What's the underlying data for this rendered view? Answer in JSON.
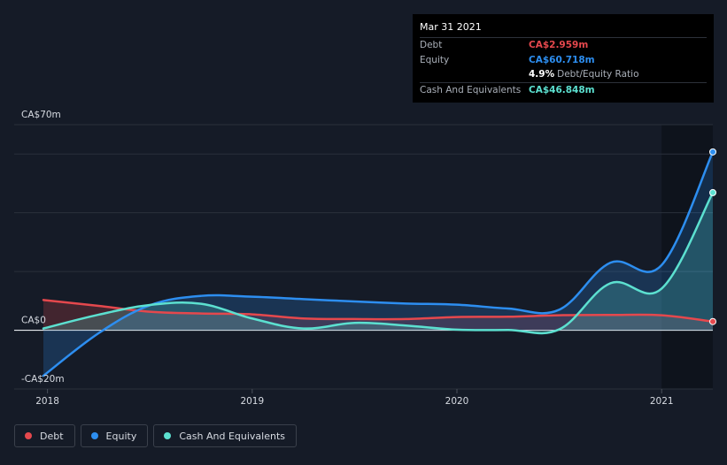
{
  "tooltip": {
    "date": "Mar 31 2021",
    "debt_label": "Debt",
    "debt_value": "CA$2.959m",
    "equity_label": "Equity",
    "equity_value": "CA$60.718m",
    "ratio_value": "4.9%",
    "ratio_label": "Debt/Equity Ratio",
    "cash_label": "Cash And Equivalents",
    "cash_value": "CA$46.848m"
  },
  "legend": [
    {
      "label": "Debt",
      "color": "#e5484d"
    },
    {
      "label": "Equity",
      "color": "#2d8ef0"
    },
    {
      "label": "Cash And Equivalents",
      "color": "#5ce0d0"
    }
  ],
  "chart_data": {
    "type": "line",
    "currency": "CA$",
    "unit": "millions",
    "ylim": [
      -20,
      70
    ],
    "y_ticks": [
      {
        "value": 70,
        "label": "CA$70m"
      },
      {
        "value": 0,
        "label": "CA$0"
      },
      {
        "value": -20,
        "label": "-CA$20m"
      }
    ],
    "x_ticks": [
      {
        "value": 2018.0,
        "label": "2018"
      },
      {
        "value": 2019.0,
        "label": "2019"
      },
      {
        "value": 2020.0,
        "label": "2020"
      },
      {
        "value": 2021.0,
        "label": "2021"
      }
    ],
    "xlim": [
      2017.98,
      2021.25
    ],
    "gridlines": [
      60,
      40,
      20
    ],
    "series": [
      {
        "name": "Debt",
        "color": "#e5484d",
        "x": [
          2017.98,
          2018.25,
          2018.5,
          2018.75,
          2019.0,
          2019.25,
          2019.5,
          2019.75,
          2020.0,
          2020.25,
          2020.5,
          2020.75,
          2021.0,
          2021.25
        ],
        "y": [
          10.3,
          8.3,
          6.3,
          5.7,
          5.4,
          4.0,
          3.8,
          3.8,
          4.5,
          4.6,
          5.1,
          5.2,
          5.1,
          2.959
        ]
      },
      {
        "name": "Equity",
        "color": "#2d8ef0",
        "x": [
          2017.98,
          2018.25,
          2018.5,
          2018.75,
          2019.0,
          2019.25,
          2019.5,
          2019.75,
          2020.0,
          2020.25,
          2020.5,
          2020.75,
          2021.0,
          2021.25
        ],
        "y": [
          -15.5,
          -1.0,
          8.5,
          11.7,
          11.4,
          10.6,
          9.8,
          9.1,
          8.7,
          7.4,
          7.0,
          23.0,
          22.2,
          60.718
        ]
      },
      {
        "name": "Cash And Equivalents",
        "color": "#5ce0d0",
        "x": [
          2017.98,
          2018.25,
          2018.5,
          2018.75,
          2019.0,
          2019.25,
          2019.5,
          2019.75,
          2020.0,
          2020.25,
          2020.5,
          2020.75,
          2021.0,
          2021.25
        ],
        "y": [
          0.6,
          5.3,
          8.6,
          9.0,
          4.0,
          0.6,
          2.5,
          1.6,
          0.2,
          0.1,
          0.3,
          16.0,
          14.2,
          46.848
        ]
      }
    ]
  }
}
